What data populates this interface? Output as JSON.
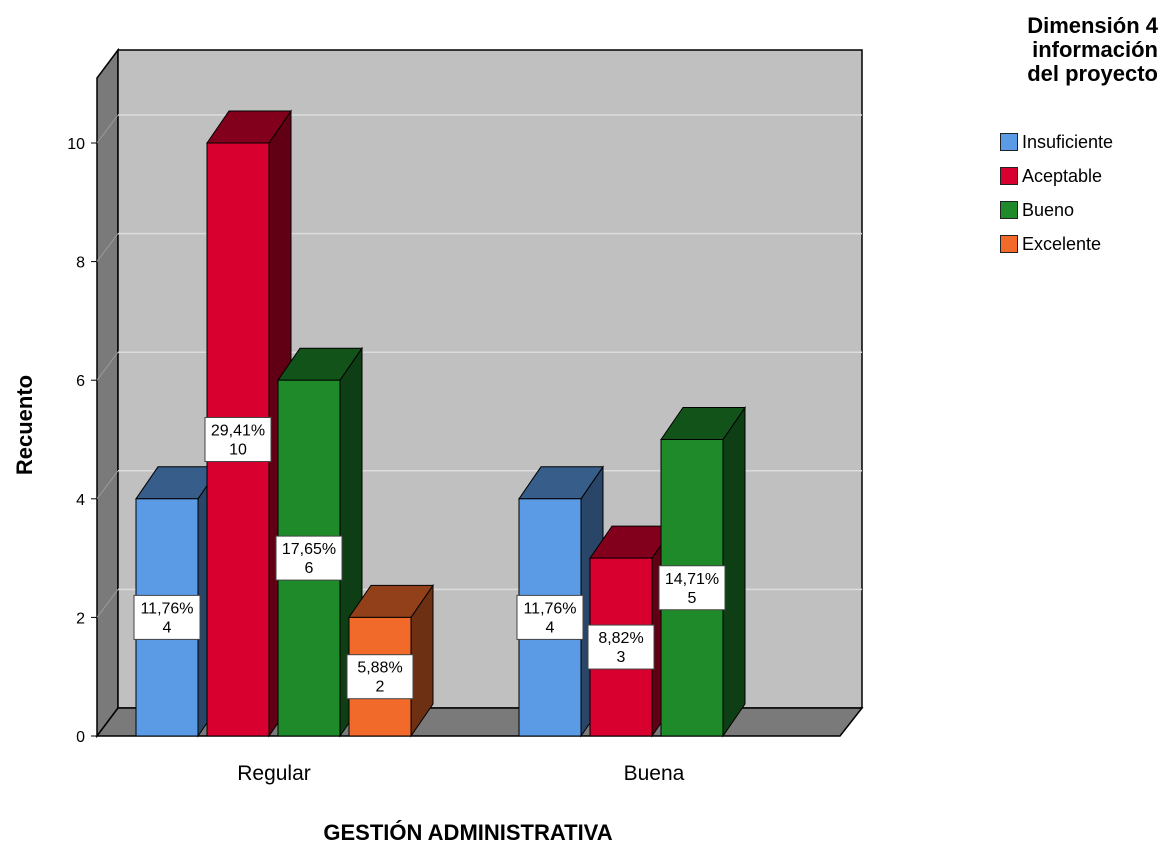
{
  "chart_data": {
    "type": "bar",
    "xlabel": "GESTIÓN ADMINISTRATIVA",
    "ylabel": "Recuento",
    "ylim": [
      0,
      10
    ],
    "yticks": [
      0,
      2,
      4,
      6,
      8,
      10
    ],
    "categories": [
      "Regular",
      "Buena"
    ],
    "legend": {
      "title": [
        "Dimensión 4",
        "información",
        "del proyecto"
      ],
      "placement": "top-right"
    },
    "grid": true,
    "style": "3d",
    "series": [
      {
        "name": "Insuficiente",
        "color": "#5b9be6",
        "values": [
          4,
          4
        ],
        "labels": [
          [
            "11,76%",
            "4"
          ],
          [
            "11,76%",
            "4"
          ]
        ]
      },
      {
        "name": "Aceptable",
        "color": "#d8002f",
        "values": [
          10,
          3
        ],
        "labels": [
          [
            "29,41%",
            "10"
          ],
          [
            "8,82%",
            "3"
          ]
        ]
      },
      {
        "name": "Bueno",
        "color": "#1e8a2a",
        "values": [
          6,
          5
        ],
        "labels": [
          [
            "17,65%",
            "6"
          ],
          [
            "14,71%",
            "5"
          ]
        ]
      },
      {
        "name": "Excelente",
        "color": "#f26a2a",
        "values": [
          2,
          null
        ],
        "labels": [
          [
            "5,88%",
            "2"
          ],
          null
        ]
      }
    ]
  }
}
